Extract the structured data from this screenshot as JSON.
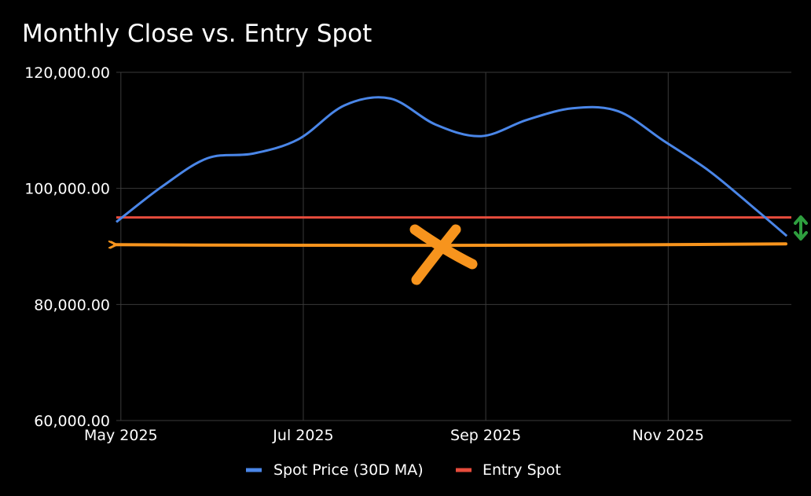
{
  "chart_data": {
    "type": "line",
    "title": "Monthly Close vs. Entry Spot",
    "xlabel": "",
    "ylabel": "",
    "x_tick_labels": [
      "May 2025",
      "Jul 2025",
      "Sep 2025",
      "Nov 2025"
    ],
    "y_tick_labels": [
      "60,000.00",
      "80,000.00",
      "100,000.00",
      "120,000.00"
    ],
    "y_ticks": [
      60000,
      80000,
      100000,
      120000
    ],
    "ylim": [
      60000,
      120000
    ],
    "x_range_months": [
      0,
      7.4
    ],
    "x_tick_months": [
      0.05,
      2.05,
      4.05,
      6.05
    ],
    "grid": true,
    "legend_position": "bottom",
    "series": [
      {
        "name": "Spot Price (30D MA)",
        "color": "#4a86e8",
        "x": [
          0.0,
          0.5,
          1.0,
          1.5,
          2.0,
          2.5,
          3.0,
          3.5,
          4.0,
          4.5,
          5.0,
          5.5,
          6.0,
          6.5,
          7.0,
          7.35
        ],
        "values": [
          94200,
          100300,
          105200,
          106000,
          108500,
          114300,
          115500,
          111000,
          109000,
          111800,
          113800,
          113300,
          108200,
          103000,
          96500,
          91800
        ]
      },
      {
        "name": "Entry Spot",
        "color": "#e74c3c",
        "x": [
          0.0,
          7.4
        ],
        "values": [
          95000,
          95000
        ]
      }
    ],
    "annotations": {
      "arrow_color": "#f7941d",
      "arrow_value": 90300,
      "marker_color": "#2e9e3e"
    }
  }
}
